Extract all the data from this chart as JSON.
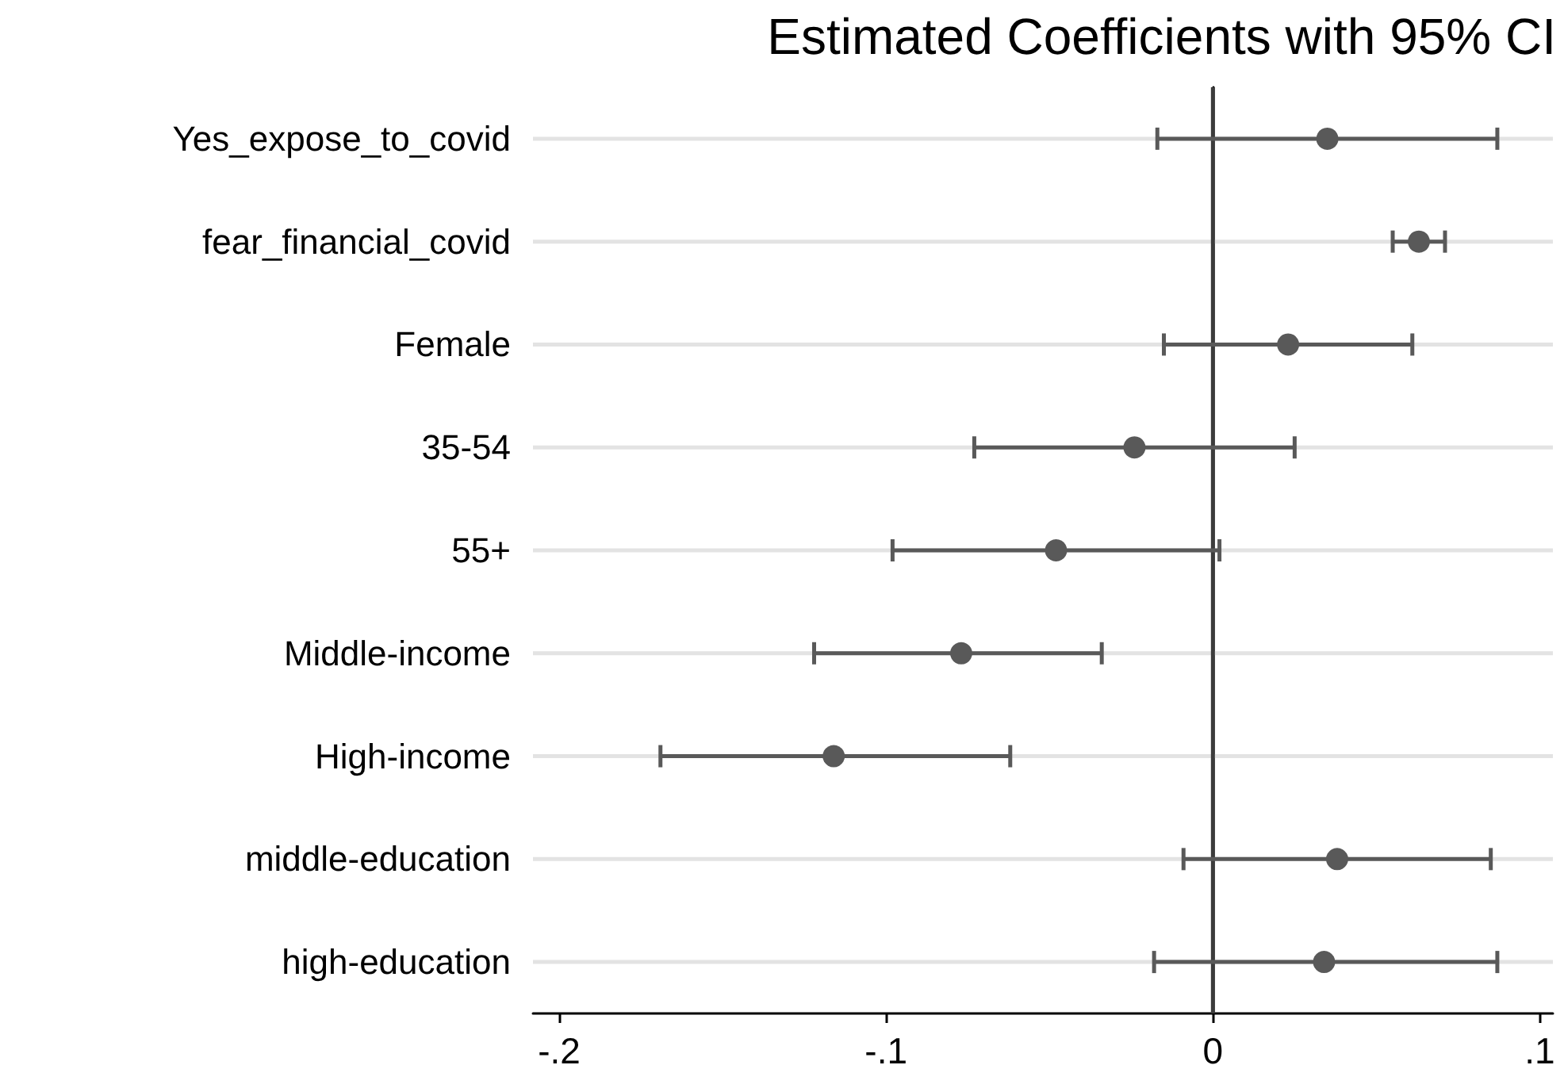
{
  "chart_data": {
    "type": "scatter",
    "orientation": "horizontal",
    "title": "Estimated Coefficients with 95% CI",
    "categories": [
      "Yes_expose_to_covid",
      "fear_financial_covid",
      "Female",
      "35-54",
      "55+",
      "Middle-income",
      "High-income",
      "middle-education",
      "high-education"
    ],
    "values": [
      0.035,
      0.063,
      0.023,
      -0.024,
      -0.048,
      -0.077,
      -0.116,
      0.038,
      0.034
    ],
    "errors": [
      [
        -0.017,
        0.087
      ],
      [
        0.055,
        0.071
      ],
      [
        -0.015,
        0.061
      ],
      [
        -0.073,
        0.025
      ],
      [
        -0.098,
        0.002
      ],
      [
        -0.122,
        -0.034
      ],
      [
        -0.169,
        -0.062
      ],
      [
        -0.009,
        0.085
      ],
      [
        -0.018,
        0.087
      ]
    ],
    "color": "#595959",
    "marker": "circle",
    "xlim": [
      -0.208,
      0.104
    ],
    "xticks": [
      {
        "value": -0.2,
        "label": "-.2"
      },
      {
        "value": -0.1,
        "label": "-.1"
      },
      0,
      {
        "value": 0.1,
        "label": ".1"
      }
    ],
    "ref_lines": [
      {
        "axis": "x",
        "value": 0,
        "color": "#3c3c3c"
      }
    ],
    "grid": "y"
  }
}
